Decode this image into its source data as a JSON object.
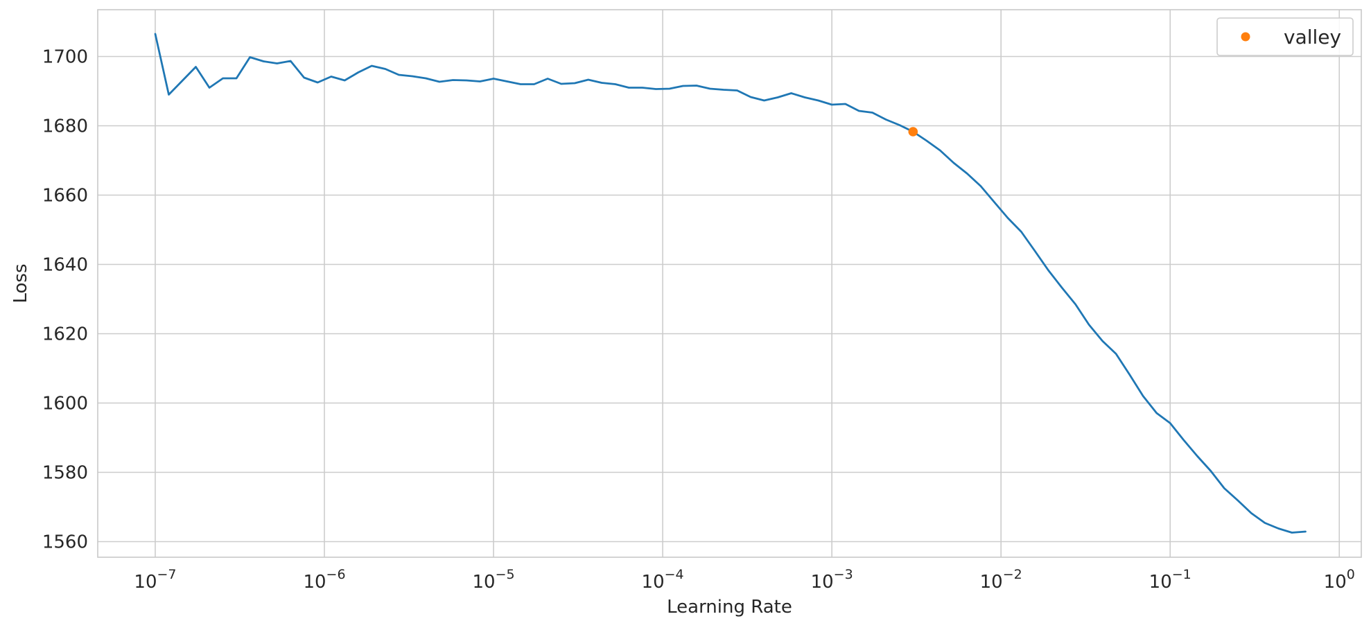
{
  "chart_data": {
    "type": "line",
    "title": "",
    "xlabel": "Learning Rate",
    "ylabel": "Loss",
    "x_scale": "log",
    "xlim_log10": [
      -7.34,
      0.13
    ],
    "ylim": [
      1555.5,
      1713.5
    ],
    "grid": true,
    "legend_position": "top-right",
    "x_ticks": [
      {
        "exp": -7,
        "base": "10",
        "power": "−7"
      },
      {
        "exp": -6,
        "base": "10",
        "power": "−6"
      },
      {
        "exp": -5,
        "base": "10",
        "power": "−5"
      },
      {
        "exp": -4,
        "base": "10",
        "power": "−4"
      },
      {
        "exp": -3,
        "base": "10",
        "power": "−3"
      },
      {
        "exp": -2,
        "base": "10",
        "power": "−2"
      },
      {
        "exp": -1,
        "base": "10",
        "power": "−1"
      },
      {
        "exp": 0,
        "base": "10",
        "power": "0"
      }
    ],
    "y_ticks": [
      {
        "value": 1560,
        "label": "1560"
      },
      {
        "value": 1580,
        "label": "1580"
      },
      {
        "value": 1600,
        "label": "1600"
      },
      {
        "value": 1620,
        "label": "1620"
      },
      {
        "value": 1640,
        "label": "1640"
      },
      {
        "value": 1660,
        "label": "1660"
      },
      {
        "value": 1680,
        "label": "1680"
      },
      {
        "value": 1700,
        "label": "1700"
      }
    ],
    "series": [
      {
        "name": "loss",
        "color": "#1f77b4",
        "log10_lr": [
          -7.0,
          -6.92,
          -6.84,
          -6.76,
          -6.68,
          -6.6,
          -6.52,
          -6.44,
          -6.36,
          -6.28,
          -6.2,
          -6.12,
          -6.04,
          -5.96,
          -5.88,
          -5.8,
          -5.72,
          -5.64,
          -5.56,
          -5.48,
          -5.4,
          -5.32,
          -5.24,
          -5.16,
          -5.08,
          -5.0,
          -4.92,
          -4.84,
          -4.76,
          -4.68,
          -4.6,
          -4.52,
          -4.44,
          -4.36,
          -4.28,
          -4.2,
          -4.12,
          -4.04,
          -3.96,
          -3.88,
          -3.8,
          -3.72,
          -3.64,
          -3.56,
          -3.48,
          -3.4,
          -3.32,
          -3.24,
          -3.16,
          -3.08,
          -3.0,
          -2.92,
          -2.84,
          -2.76,
          -2.68,
          -2.6,
          -2.52,
          -2.44,
          -2.36,
          -2.28,
          -2.2,
          -2.12,
          -2.04,
          -1.96,
          -1.88,
          -1.8,
          -1.72,
          -1.64,
          -1.56,
          -1.48,
          -1.4,
          -1.32,
          -1.24,
          -1.16,
          -1.08,
          -1.0,
          -0.92,
          -0.84,
          -0.76,
          -0.68,
          -0.6,
          -0.52,
          -0.44,
          -0.36,
          -0.28,
          -0.2
        ],
        "values": [
          1706.5,
          1689.0,
          1693.0,
          1697.0,
          1691.0,
          1693.7,
          1693.7,
          1699.8,
          1698.6,
          1698.0,
          1698.7,
          1693.9,
          1692.5,
          1694.2,
          1693.1,
          1695.4,
          1697.3,
          1696.4,
          1694.7,
          1694.3,
          1693.7,
          1692.7,
          1693.2,
          1693.1,
          1692.8,
          1693.6,
          1692.8,
          1692.0,
          1692.0,
          1693.6,
          1692.1,
          1692.3,
          1693.3,
          1692.4,
          1692.0,
          1691.0,
          1691.0,
          1690.6,
          1690.7,
          1691.5,
          1691.6,
          1690.7,
          1690.4,
          1690.2,
          1688.3,
          1687.3,
          1688.2,
          1689.4,
          1688.2,
          1687.3,
          1686.1,
          1686.3,
          1684.3,
          1683.8,
          1681.8,
          1680.2,
          1678.3,
          1675.7,
          1672.9,
          1669.3,
          1666.2,
          1662.6,
          1658.0,
          1653.4,
          1649.4,
          1643.9,
          1638.3,
          1633.3,
          1628.5,
          1622.6,
          1617.9,
          1614.2,
          1608.2,
          1602.0,
          1597.1,
          1594.2,
          1589.3,
          1584.7,
          1580.4,
          1575.4,
          1571.9,
          1568.2,
          1565.4,
          1563.8,
          1562.6,
          1562.9
        ]
      }
    ],
    "annotations": [
      {
        "name": "valley",
        "color": "#ff7f0e",
        "log10_lr": -2.52,
        "value": 1678.3
      }
    ],
    "legend": [
      {
        "label": "valley",
        "color": "#ff7f0e",
        "marker": "circle"
      }
    ]
  }
}
